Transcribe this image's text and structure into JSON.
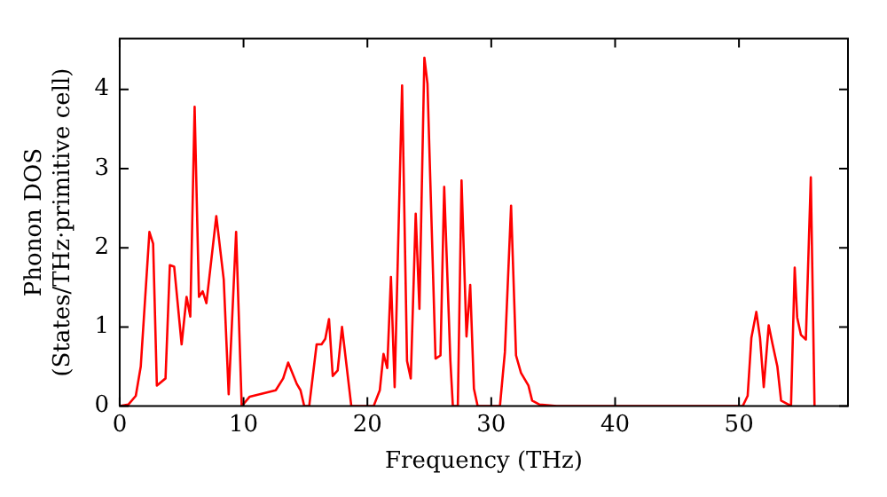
{
  "chart_data": {
    "type": "line",
    "xlabel": "Frequency (THz)",
    "ylabel": "Phonon DOS\n(States/THz·primitive cell)",
    "xlim": [
      0,
      58.8
    ],
    "ylim": [
      0,
      4.64
    ],
    "xticks": [
      0,
      10,
      20,
      30,
      40,
      50
    ],
    "yticks": [
      0,
      1,
      2,
      3,
      4
    ],
    "grid": false,
    "legend": false,
    "marker": "none",
    "line_style": "solid",
    "series": [
      {
        "color": "#ff0000",
        "x": [
          0,
          0.7,
          1.3,
          1.7,
          2.4,
          2.7,
          3.0,
          3.7,
          4.05,
          4.4,
          5.0,
          5.4,
          5.7,
          6.05,
          6.4,
          6.7,
          7.0,
          7.8,
          8.4,
          8.8,
          9.4,
          9.85,
          10.5,
          12.6,
          13.2,
          13.6,
          14.3,
          14.6,
          14.9,
          15.3,
          15.9,
          16.3,
          16.6,
          16.9,
          17.2,
          17.6,
          17.95,
          18.7,
          20.5,
          21.0,
          21.3,
          21.6,
          21.9,
          22.2,
          22.8,
          23.2,
          23.5,
          23.9,
          24.2,
          24.6,
          24.85,
          25.5,
          25.9,
          26.2,
          26.7,
          26.9,
          27.3,
          27.6,
          28.0,
          28.3,
          28.6,
          28.9,
          30.7,
          31.1,
          31.6,
          32.0,
          32.4,
          33.0,
          33.3,
          33.9,
          35.3,
          50.3,
          50.7,
          51.0,
          51.4,
          51.7,
          52.0,
          52.4,
          52.7,
          53.1,
          53.4,
          54.0,
          54.2,
          54.5,
          54.7,
          55.0,
          55.4,
          55.8,
          56.1
        ],
        "values": [
          0,
          0.02,
          0.13,
          0.5,
          2.2,
          2.05,
          0.26,
          0.35,
          1.78,
          1.76,
          0.78,
          1.38,
          1.13,
          3.78,
          1.38,
          1.45,
          1.3,
          2.4,
          1.6,
          0.15,
          2.2,
          0,
          0.12,
          0.2,
          0.35,
          0.55,
          0.28,
          0.2,
          0,
          0,
          0.78,
          0.78,
          0.85,
          1.1,
          0.38,
          0.45,
          1.0,
          0,
          0,
          0.2,
          0.66,
          0.48,
          1.63,
          0.24,
          4.05,
          0.57,
          0.35,
          2.43,
          1.23,
          4.4,
          4.07,
          0.6,
          0.64,
          2.77,
          0.57,
          0,
          0,
          2.85,
          0.88,
          1.53,
          0.22,
          0,
          0,
          0.68,
          2.53,
          0.64,
          0.42,
          0.26,
          0.07,
          0.02,
          0,
          0,
          0.13,
          0.86,
          1.19,
          0.86,
          0.24,
          1.02,
          0.79,
          0.5,
          0.07,
          0.02,
          0,
          1.75,
          1.12,
          0.9,
          0.84,
          2.89,
          0
        ]
      }
    ]
  }
}
